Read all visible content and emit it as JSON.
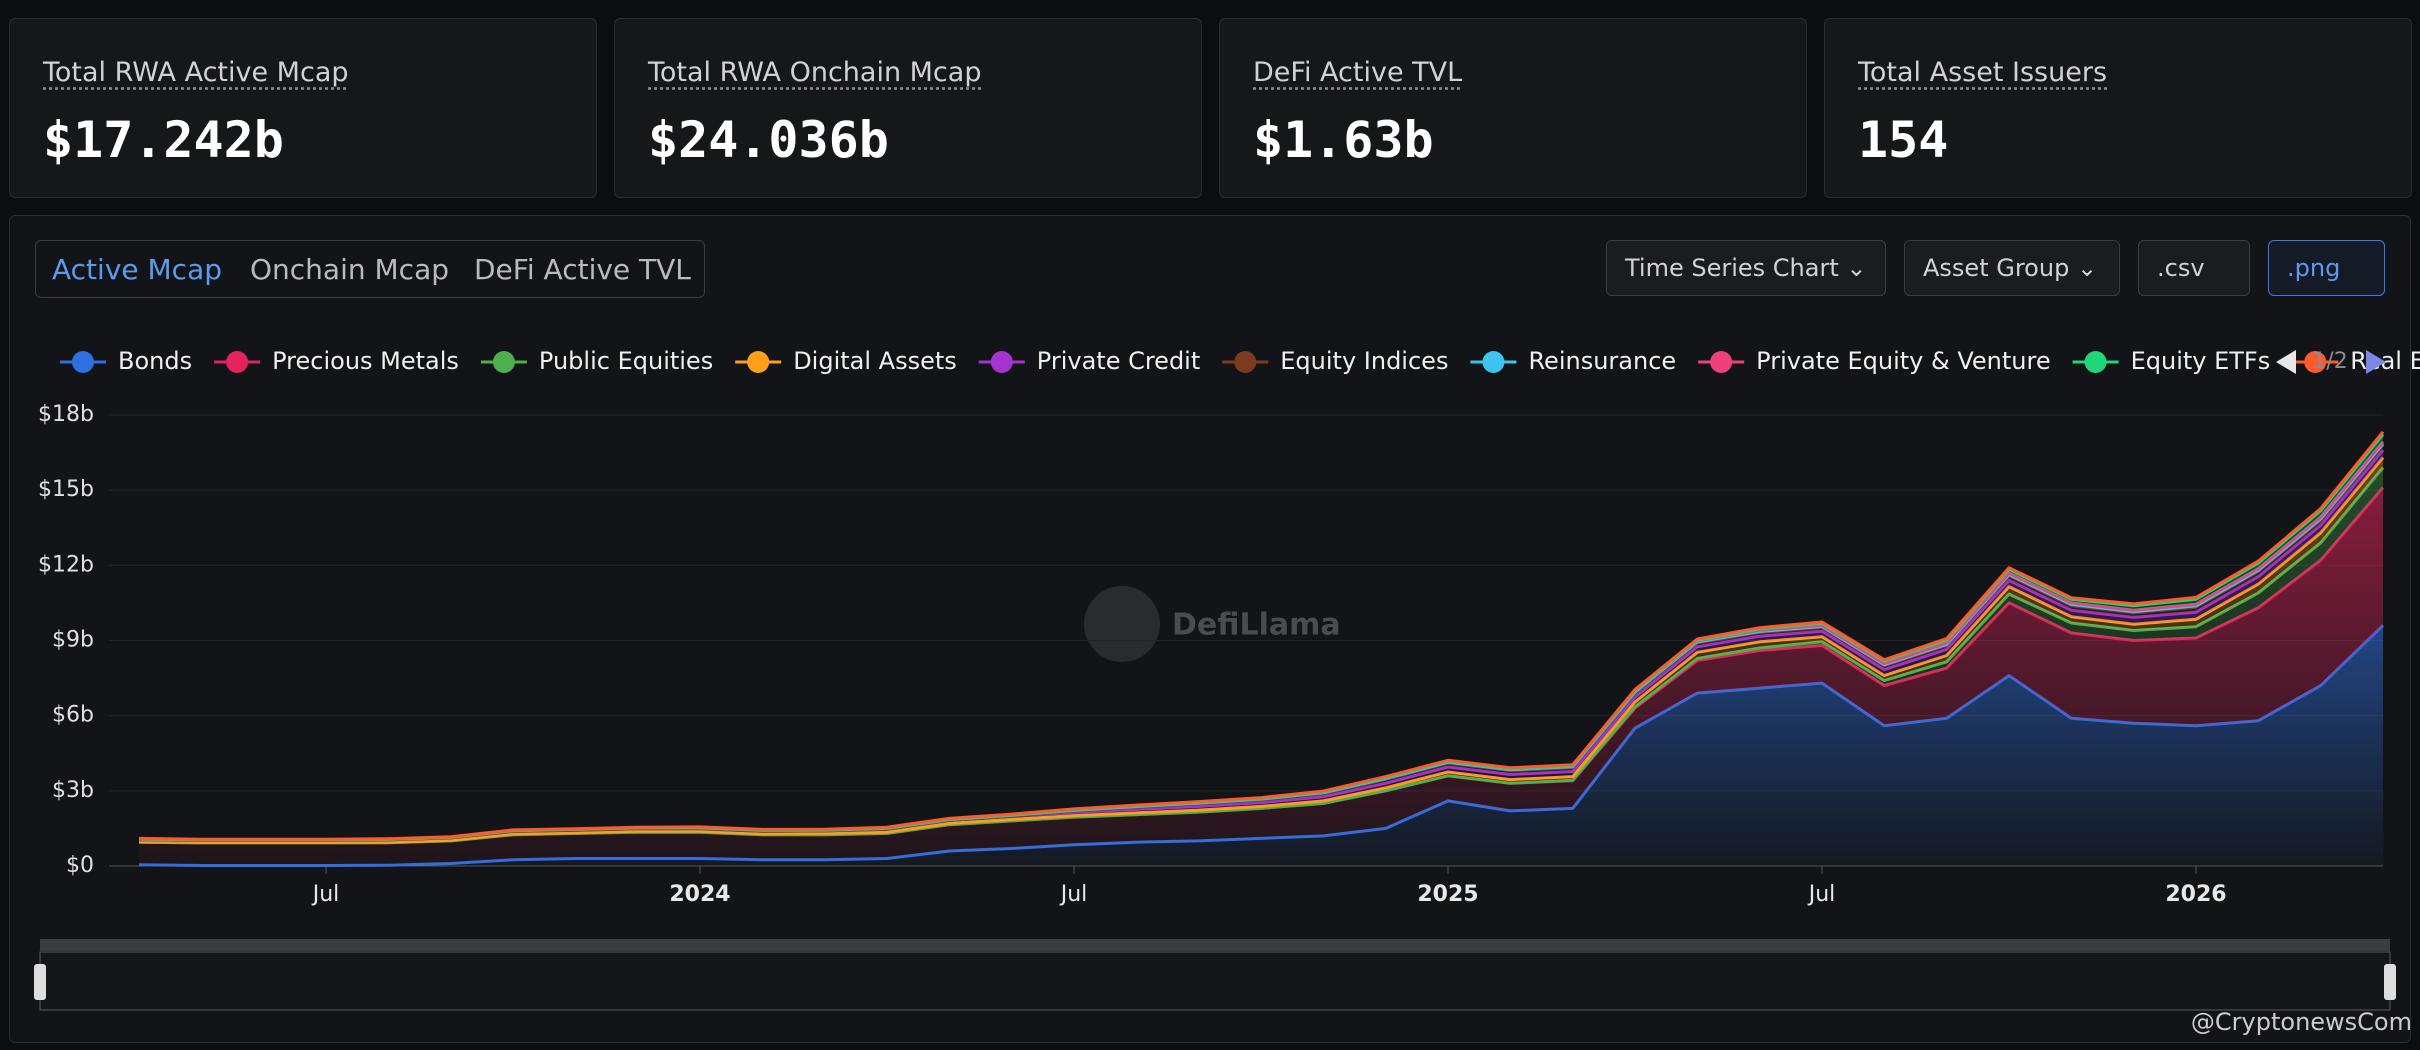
{
  "stats": [
    {
      "label": "Total RWA Active Mcap",
      "value": "$17.242b"
    },
    {
      "label": "Total RWA Onchain Mcap",
      "value": "$24.036b"
    },
    {
      "label": "DeFi Active TVL",
      "value": "$1.63b"
    },
    {
      "label": "Total Asset Issuers",
      "value": "154"
    }
  ],
  "tabs": [
    "Active Mcap",
    "Onchain Mcap",
    "DeFi Active TVL"
  ],
  "buttons": [
    "Time Series Chart",
    "Asset Group",
    ".csv",
    ".png"
  ],
  "legend_pager": "1/2",
  "watermark": "DefiLlama",
  "credit": "@CryptonewsCom",
  "chart_data": {
    "type": "stacked_area",
    "x": [
      "2023-04",
      "2023-05",
      "2023-06",
      "2023-07",
      "2023-08",
      "2023-09",
      "2023-10",
      "2023-11",
      "2023-12",
      "2024-01",
      "2024-02",
      "2024-03",
      "2024-04",
      "2024-05",
      "2024-06",
      "2024-07",
      "2024-08",
      "2024-09",
      "2024-10",
      "2024-11",
      "2024-12",
      "2025-01",
      "2025-02",
      "2025-03",
      "2025-04",
      "2025-05",
      "2025-06",
      "2025-07",
      "2025-08",
      "2025-09",
      "2025-10",
      "2025-11",
      "2025-12",
      "2026-01",
      "2026-02",
      "2026-03",
      "2026-04"
    ],
    "xlim": [
      "2023-04",
      "2026-04"
    ],
    "xticks": [
      {
        "value": "2023-07",
        "label": "Jul"
      },
      {
        "value": "2024-01",
        "label": "2024"
      },
      {
        "value": "2024-07",
        "label": "Jul"
      },
      {
        "value": "2025-01",
        "label": "2025"
      },
      {
        "value": "2025-07",
        "label": "Jul"
      },
      {
        "value": "2026-01",
        "label": "2026"
      }
    ],
    "ylim": [
      0,
      18
    ],
    "yticks": [
      {
        "value": 0,
        "label": "$0"
      },
      {
        "value": 3,
        "label": "$3b"
      },
      {
        "value": 6,
        "label": "$6b"
      },
      {
        "value": 9,
        "label": "$9b"
      },
      {
        "value": 12,
        "label": "$12b"
      },
      {
        "value": 15,
        "label": "$15b"
      },
      {
        "value": 18,
        "label": "$18b"
      }
    ],
    "grid": true,
    "series": [
      {
        "name": "Bonds",
        "color": "#2f6fe0",
        "values": [
          0.05,
          0.02,
          0.02,
          0.02,
          0.03,
          0.1,
          0.25,
          0.3,
          0.3,
          0.3,
          0.25,
          0.25,
          0.3,
          0.6,
          0.7,
          0.85,
          0.95,
          1.0,
          1.1,
          1.2,
          1.5,
          2.6,
          2.2,
          2.3,
          5.5,
          6.9,
          7.1,
          7.3,
          5.6,
          5.9,
          7.6,
          5.9,
          5.7,
          5.6,
          5.8,
          7.2,
          9.6
        ]
      },
      {
        "name": "Precious Metals",
        "color": "#e3245c",
        "values": [
          0.9,
          0.9,
          0.9,
          0.9,
          0.9,
          0.9,
          1.0,
          1.0,
          1.05,
          1.05,
          1.0,
          1.0,
          1.0,
          1.05,
          1.1,
          1.1,
          1.1,
          1.15,
          1.2,
          1.3,
          1.5,
          1.0,
          1.1,
          1.1,
          0.8,
          1.3,
          1.5,
          1.5,
          1.6,
          2.0,
          2.9,
          3.4,
          3.3,
          3.5,
          4.5,
          5.0,
          5.5
        ]
      },
      {
        "name": "Public Equities",
        "color": "#4caf50",
        "values": [
          0,
          0,
          0,
          0,
          0,
          0,
          0,
          0,
          0,
          0,
          0,
          0,
          0,
          0,
          0,
          0,
          0,
          0,
          0,
          0,
          0,
          0,
          0,
          0.02,
          0.05,
          0.08,
          0.1,
          0.15,
          0.2,
          0.25,
          0.35,
          0.4,
          0.4,
          0.45,
          0.6,
          0.7,
          0.8
        ]
      },
      {
        "name": "Digital Assets",
        "color": "#ff9f1c",
        "values": [
          0.02,
          0.02,
          0.02,
          0.02,
          0.02,
          0.03,
          0.03,
          0.03,
          0.04,
          0.04,
          0.04,
          0.05,
          0.05,
          0.05,
          0.06,
          0.06,
          0.07,
          0.08,
          0.08,
          0.1,
          0.12,
          0.15,
          0.15,
          0.15,
          0.2,
          0.25,
          0.25,
          0.2,
          0.2,
          0.25,
          0.3,
          0.25,
          0.25,
          0.3,
          0.35,
          0.4,
          0.4
        ]
      },
      {
        "name": "Private Credit",
        "color": "#a632d0",
        "values": [
          0.08,
          0.08,
          0.08,
          0.08,
          0.09,
          0.09,
          0.1,
          0.1,
          0.1,
          0.1,
          0.1,
          0.1,
          0.12,
          0.12,
          0.13,
          0.13,
          0.14,
          0.15,
          0.15,
          0.16,
          0.18,
          0.2,
          0.2,
          0.2,
          0.2,
          0.22,
          0.22,
          0.22,
          0.24,
          0.25,
          0.25,
          0.26,
          0.27,
          0.28,
          0.3,
          0.3,
          0.3
        ]
      },
      {
        "name": "Equity Indices",
        "color": "#7c3b1e",
        "values": [
          0,
          0,
          0,
          0,
          0,
          0,
          0,
          0,
          0,
          0,
          0,
          0,
          0,
          0,
          0,
          0.05,
          0.08,
          0.1,
          0.1,
          0.12,
          0.15,
          0.15,
          0.15,
          0.15,
          0.15,
          0.15,
          0.15,
          0.15,
          0.15,
          0.15,
          0.18,
          0.18,
          0.18,
          0.2,
          0.2,
          0.2,
          0.2
        ]
      },
      {
        "name": "Reinsurance",
        "color": "#3cc3f0",
        "values": [
          0.02,
          0.02,
          0.02,
          0.02,
          0.02,
          0.02,
          0.03,
          0.03,
          0.03,
          0.03,
          0.03,
          0.03,
          0.03,
          0.03,
          0.03,
          0.03,
          0.03,
          0.03,
          0.04,
          0.04,
          0.04,
          0.04,
          0.04,
          0.04,
          0.04,
          0.04,
          0.04,
          0.04,
          0.04,
          0.04,
          0.05,
          0.05,
          0.05,
          0.05,
          0.05,
          0.05,
          0.05
        ]
      },
      {
        "name": "Private Equity & Venture",
        "color": "#ef3f7c",
        "values": [
          0.01,
          0.01,
          0.01,
          0.01,
          0.01,
          0.01,
          0.01,
          0.01,
          0.01,
          0.02,
          0.02,
          0.02,
          0.02,
          0.02,
          0.02,
          0.03,
          0.03,
          0.03,
          0.03,
          0.03,
          0.04,
          0.04,
          0.04,
          0.04,
          0.05,
          0.05,
          0.05,
          0.05,
          0.05,
          0.06,
          0.06,
          0.06,
          0.06,
          0.07,
          0.07,
          0.08,
          0.08
        ]
      },
      {
        "name": "Equity ETFs",
        "color": "#1fd67a",
        "values": [
          0,
          0,
          0,
          0,
          0,
          0,
          0,
          0,
          0,
          0,
          0,
          0,
          0,
          0,
          0,
          0,
          0,
          0,
          0,
          0,
          0,
          0,
          0,
          0,
          0,
          0.02,
          0.05,
          0.08,
          0.1,
          0.12,
          0.15,
          0.15,
          0.18,
          0.2,
          0.22,
          0.25,
          0.3
        ]
      },
      {
        "name": "Real Es",
        "color": "#ff5a2a",
        "values": [
          0.02,
          0.02,
          0.02,
          0.02,
          0.02,
          0.02,
          0.02,
          0.02,
          0.02,
          0.02,
          0.02,
          0.02,
          0.03,
          0.03,
          0.03,
          0.03,
          0.03,
          0.03,
          0.03,
          0.04,
          0.04,
          0.04,
          0.04,
          0.04,
          0.05,
          0.05,
          0.05,
          0.05,
          0.05,
          0.06,
          0.06,
          0.06,
          0.07,
          0.07,
          0.08,
          0.09,
          0.1
        ]
      }
    ]
  }
}
